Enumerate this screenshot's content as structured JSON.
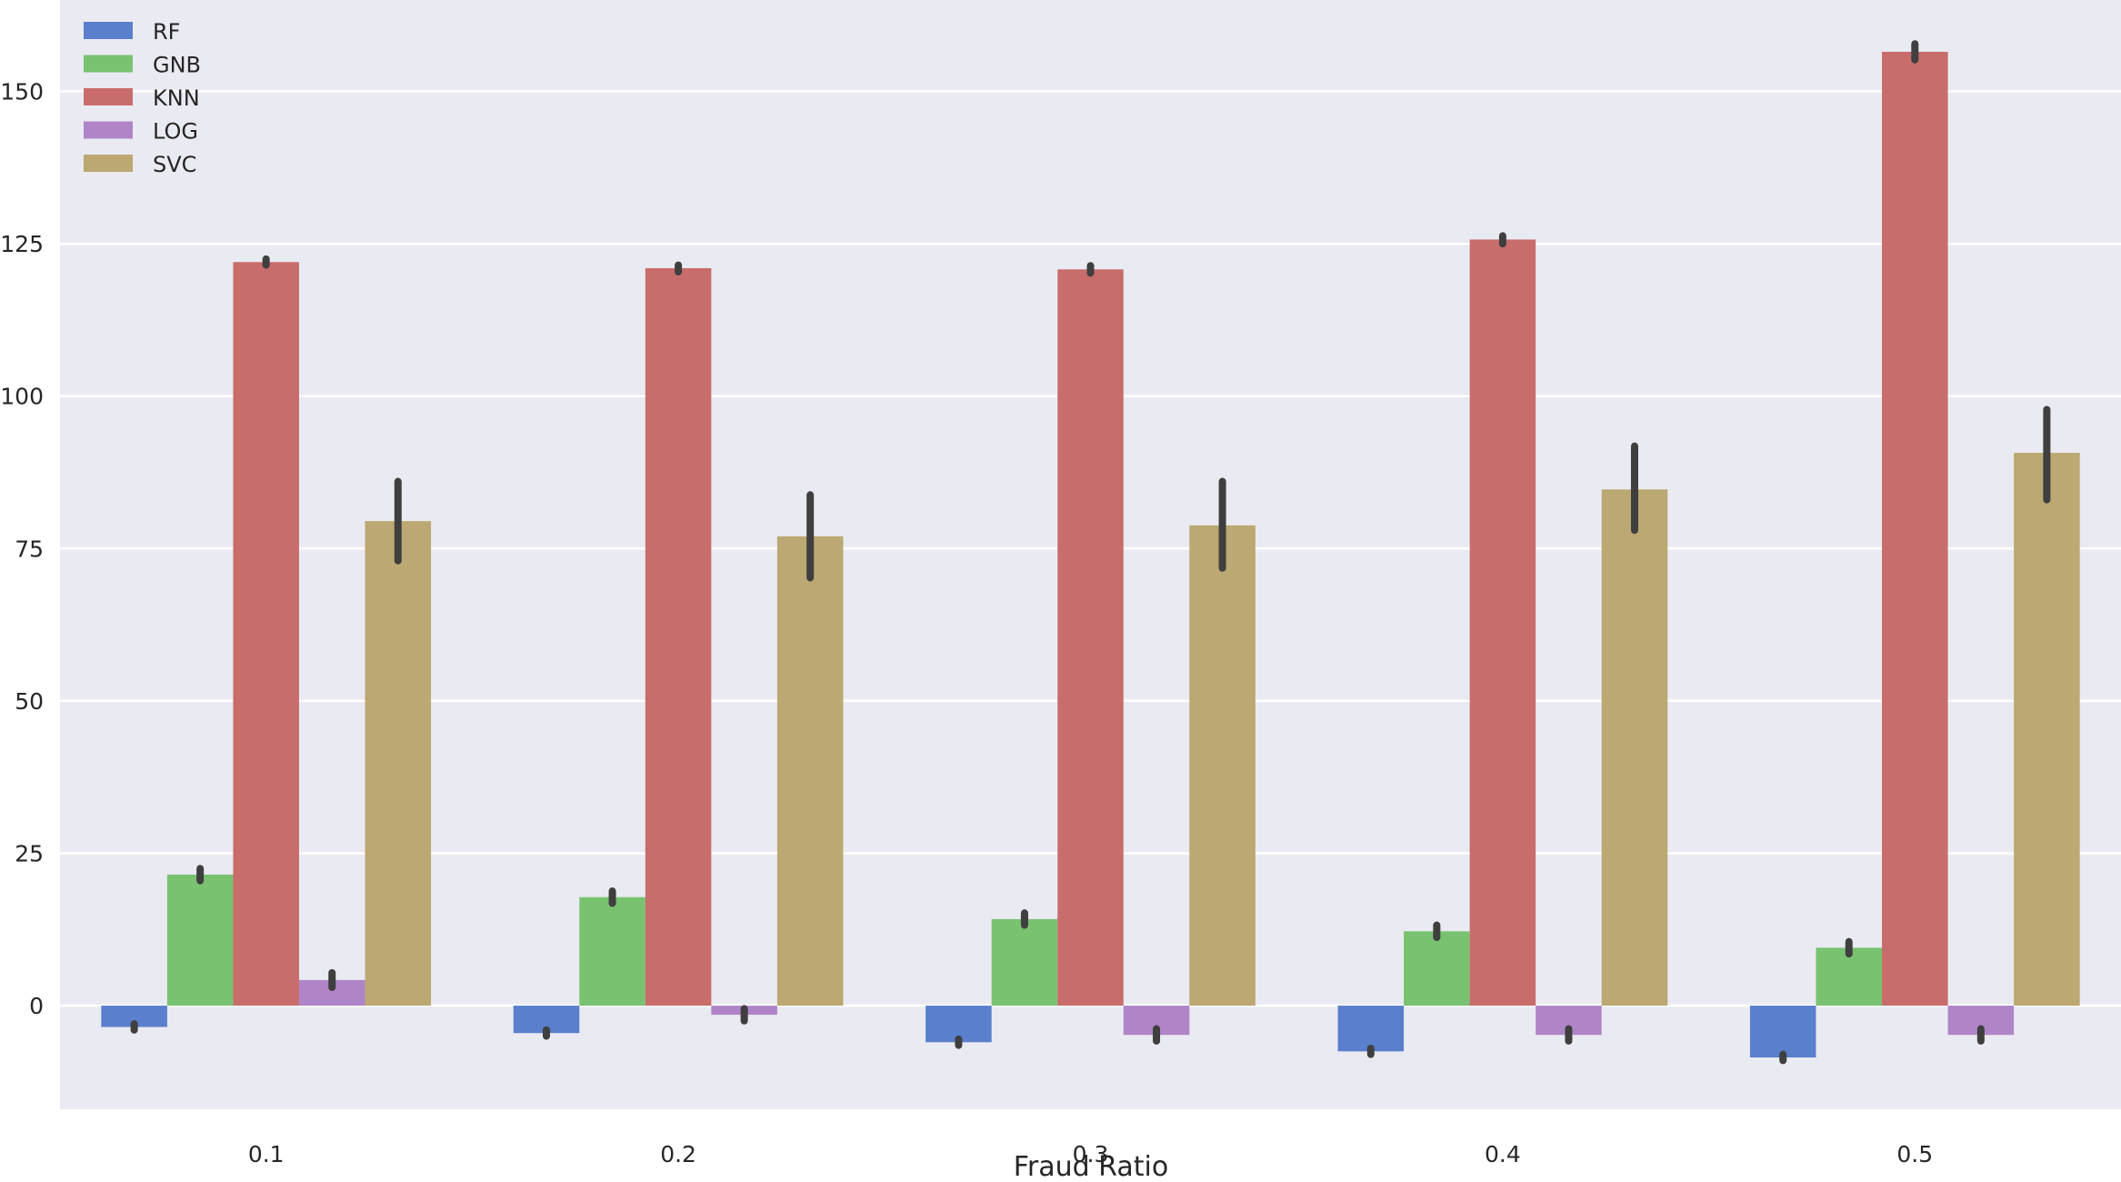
{
  "chart_data": {
    "type": "bar",
    "title": "",
    "xlabel": "Fraud Ratio",
    "ylabel": "",
    "categories": [
      "0.1",
      "0.2",
      "0.3",
      "0.4",
      "0.5"
    ],
    "ylim": [
      -17,
      165
    ],
    "yticks": [
      0,
      25,
      50,
      75,
      100,
      125,
      150
    ],
    "grid": true,
    "legend_position": "top-left",
    "background_color": "#EAEAF2",
    "errorbar_color": "#3F3F3F",
    "series": [
      {
        "name": "RF",
        "color": "#5A7FCC",
        "values": [
          -3.5,
          -4.5,
          -6.0,
          -7.5,
          -8.5
        ],
        "error_low": [
          -4.0,
          -5.0,
          -6.5,
          -8.0,
          -9.0
        ],
        "error_high": [
          -3.0,
          -4.0,
          -5.5,
          -7.0,
          -8.0
        ]
      },
      {
        "name": "GNB",
        "color": "#78C270",
        "values": [
          21.5,
          17.8,
          14.2,
          12.2,
          9.5
        ],
        "error_low": [
          20.5,
          16.8,
          13.2,
          11.2,
          8.5
        ],
        "error_high": [
          22.5,
          18.8,
          15.2,
          13.2,
          10.5
        ]
      },
      {
        "name": "KNN",
        "color": "#C86D6B",
        "values": [
          122.0,
          121.0,
          120.8,
          125.7,
          156.5
        ],
        "error_low": [
          121.5,
          120.4,
          120.2,
          125.0,
          155.2
        ],
        "error_high": [
          122.5,
          121.5,
          121.4,
          126.3,
          157.8
        ]
      },
      {
        "name": "LOG",
        "color": "#B085C8",
        "values": [
          4.2,
          -1.5,
          -4.8,
          -4.8,
          -4.8
        ],
        "error_low": [
          3.0,
          -2.5,
          -5.8,
          -5.8,
          -5.8
        ],
        "error_high": [
          5.4,
          -0.5,
          -3.8,
          -3.8,
          -3.8
        ]
      },
      {
        "name": "SVC",
        "color": "#BBA872",
        "values": [
          79.5,
          77.0,
          78.8,
          84.7,
          90.7
        ],
        "error_low": [
          73.0,
          70.2,
          71.8,
          78.0,
          83.0
        ],
        "error_high": [
          86.0,
          83.8,
          86.0,
          91.8,
          97.8
        ]
      }
    ]
  }
}
